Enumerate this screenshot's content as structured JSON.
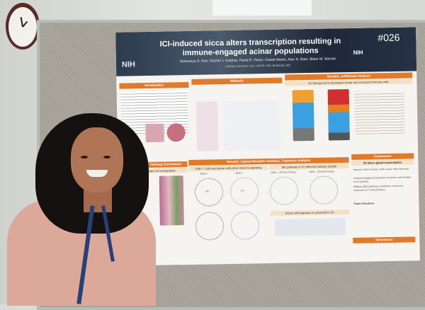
{
  "poster": {
    "title": "ICI-induced sicca alters transcription resulting in immune-engaged acinar populations",
    "authors": "Aishwarya S. Rao, Rachel J. Kulchar, Paola R. Perez, Daniel Martin, Alan N. Baer, Blake M. Warner",
    "affiliation": "Salivary Disorders Unit, NIDCR, NIH, Bethesda, MD",
    "number": "#026",
    "logo_left": "NIH",
    "logo_right": "NIH",
    "sections": {
      "introduction": "Introduction",
      "methods": "Methods",
      "scrnaseq": "Results: scRNAseq Analysis",
      "scrnaseq_sub": "ICI therapy led to decreased acinar and increased immune cells.",
      "pathway": "Results: Pathway Enrichment",
      "pathway_sub": "Pathways are upregulated.",
      "ligand": "Results: Ligand-Receptor Analysis, Trajectory Analysis",
      "ligand_sub1": "CD8+ T cells and acinar cells drive immune signaling.",
      "ligand_sub2": "MK pathway in ICI Affected Salivary Glands",
      "trajectory_sub": "Acinar cell trajectory is converted in ICI.",
      "conclusion": "Conclusion",
      "conclusion_sub": "ICI alters gland transcription.",
      "conclusion_points": [
        "Immune cells increase, while acinar cells decrease.",
        "Immune-engaged populations of acinar cells emerge in ICI patients.",
        "Midkine (MK) pathway contributes to immune response via T cell activation"
      ],
      "future": "Future Directions",
      "references": "References"
    },
    "chart_labels": {
      "mhc1_a": "MHC-I",
      "mhc1_b": "MHC-I",
      "mk_a": "MDK - (ITGA4+ITGB1)",
      "mk_b": "MDK - (ITGA6+ITGB1)",
      "hv": "HV",
      "ici": "ICI"
    }
  }
}
